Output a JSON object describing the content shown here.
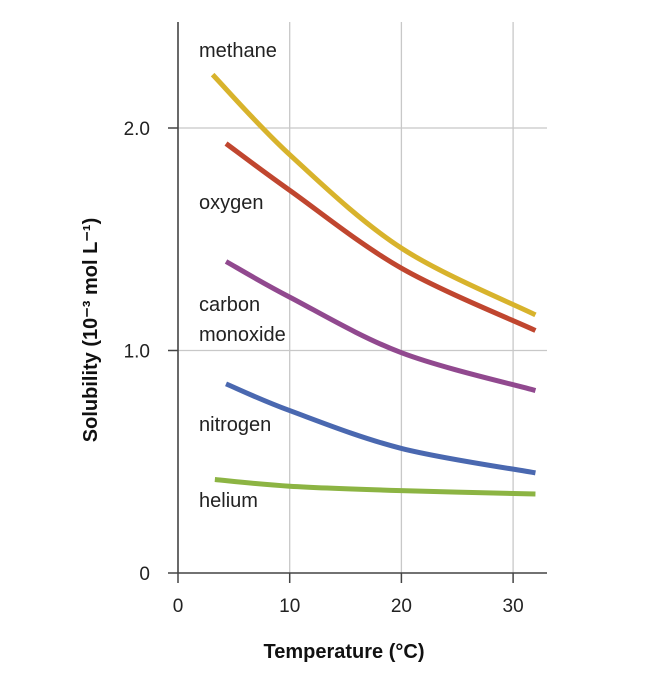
{
  "chart_data": {
    "type": "line",
    "xlabel": "Temperature (°C)",
    "ylabel": "Solubility (10⁻³ mol L⁻¹)",
    "xlim": [
      0,
      33
    ],
    "ylim": [
      0,
      2.5
    ],
    "xticks": [
      "0",
      "10",
      "20",
      "30"
    ],
    "yticks": [
      "0",
      "1.0",
      "2.0"
    ],
    "grid": true,
    "legend": "inline labels",
    "series": [
      {
        "name": "methane",
        "label_lines": [
          "methane"
        ],
        "color": "#D8B32C",
        "x": [
          3.1,
          10,
          20,
          32
        ],
        "y": [
          2.24,
          1.88,
          1.46,
          1.16
        ]
      },
      {
        "name": "oxygen",
        "label_lines": [
          "oxygen"
        ],
        "color": "#C0462F",
        "x": [
          4.3,
          10,
          20,
          32
        ],
        "y": [
          1.93,
          1.72,
          1.37,
          1.09
        ]
      },
      {
        "name": "carbon monoxide",
        "label_lines": [
          "carbon",
          "monoxide"
        ],
        "color": "#91498F",
        "x": [
          4.3,
          10,
          20,
          32
        ],
        "y": [
          1.4,
          1.24,
          0.99,
          0.82
        ]
      },
      {
        "name": "nitrogen",
        "label_lines": [
          "nitrogen"
        ],
        "color": "#4A68B0",
        "x": [
          4.3,
          10,
          20,
          32
        ],
        "y": [
          0.85,
          0.73,
          0.56,
          0.45
        ]
      },
      {
        "name": "helium",
        "label_lines": [
          "helium"
        ],
        "color": "#8CB443",
        "x": [
          3.3,
          10,
          20,
          32
        ],
        "y": [
          0.42,
          0.39,
          0.37,
          0.355
        ]
      }
    ]
  }
}
